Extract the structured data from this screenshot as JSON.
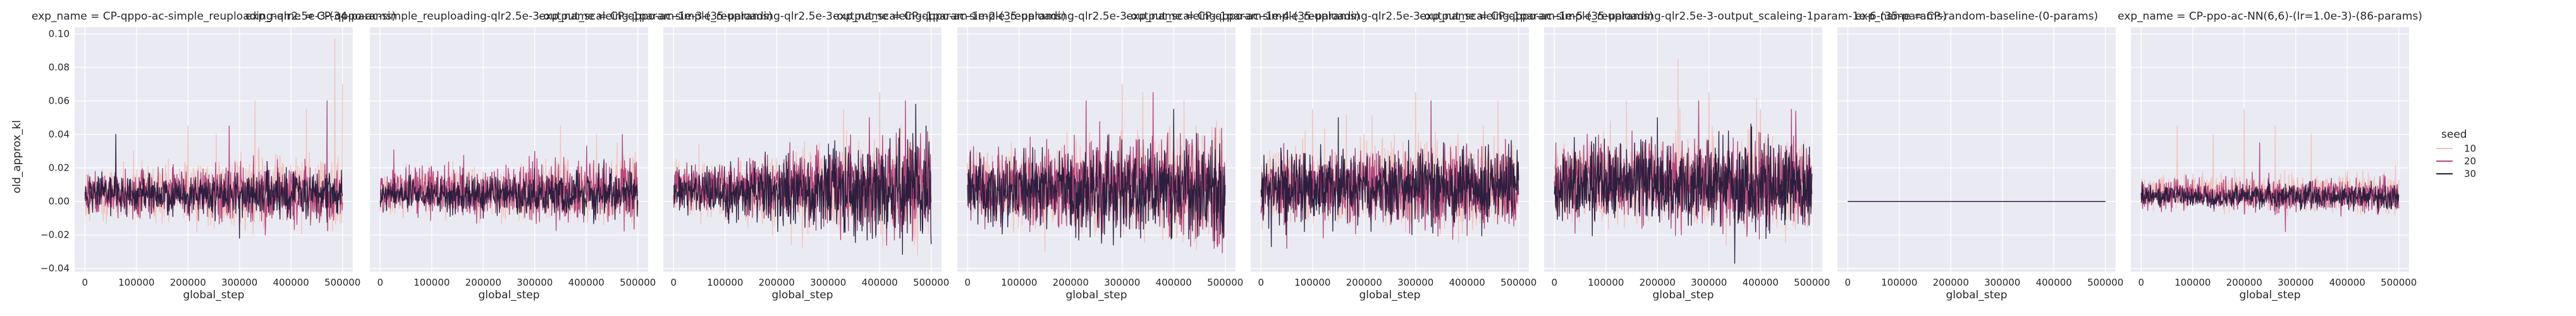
{
  "chart_data": {
    "type": "line",
    "xlabel": "global_step",
    "ylabel": "old_approx_kl",
    "xlim": [
      -20000,
      520000
    ],
    "ylim": [
      -0.042,
      0.104
    ],
    "xticks": [
      0,
      100000,
      200000,
      300000,
      400000,
      500000
    ],
    "xtick_labels": [
      "0",
      "100000",
      "200000",
      "300000",
      "400000",
      "500000"
    ],
    "yticks": [
      -0.04,
      -0.02,
      0.0,
      0.02,
      0.04,
      0.06,
      0.08,
      0.1
    ],
    "ytick_labels": [
      "−0.04",
      "−0.02",
      "0.00",
      "0.02",
      "0.04",
      "0.06",
      "0.08",
      "0.10"
    ],
    "grid": true,
    "legend": {
      "title": "seed",
      "placement": "right",
      "entries": [
        {
          "label": "10",
          "color": "#f1c3bd"
        },
        {
          "label": "20",
          "color": "#b3477a"
        },
        {
          "label": "30",
          "color": "#2d1e3e"
        }
      ]
    },
    "panels": [
      {
        "title": "exp_name = CP-qppo-ac-simple_reuploading-qlr2.5e-3-(34-params)",
        "series": [
          {
            "name": "10",
            "center": 0.005,
            "spread": 0.007,
            "spread_end": 0.012,
            "outliers": [
              [
                200000,
                0.045
              ],
              [
                255000,
                0.04
              ],
              [
                330000,
                0.06
              ],
              [
                430000,
                0.055
              ],
              [
                485000,
                0.097
              ],
              [
                500000,
                0.07
              ]
            ]
          },
          {
            "name": "20",
            "center": 0.005,
            "spread": 0.006,
            "spread_end": 0.009,
            "outliers": [
              [
                280000,
                0.045
              ],
              [
                470000,
                0.06
              ],
              [
                350000,
                -0.02
              ]
            ]
          },
          {
            "name": "30",
            "center": 0.004,
            "spread": 0.005,
            "spread_end": 0.007,
            "outliers": [
              [
                60000,
                0.04
              ],
              [
                300000,
                -0.022
              ]
            ]
          }
        ]
      },
      {
        "title": "exp_name = CP-qppo-ac-simple_reuploading-qlr2.5e-3-output_scaleing-1param-1e-3-(35-params)",
        "series": [
          {
            "name": "10",
            "center": 0.005,
            "spread": 0.006,
            "spread_end": 0.01,
            "outliers": [
              [
                350000,
                0.045
              ],
              [
                420000,
                0.04
              ],
              [
                460000,
                0.035
              ]
            ]
          },
          {
            "name": "20",
            "center": 0.006,
            "spread": 0.006,
            "spread_end": 0.01,
            "outliers": [
              [
                470000,
                0.04
              ],
              [
                300000,
                0.03
              ]
            ]
          },
          {
            "name": "30",
            "center": 0.004,
            "spread": 0.004,
            "spread_end": 0.007,
            "outliers": [
              [
                200000,
                -0.01
              ]
            ]
          }
        ]
      },
      {
        "title": "exp_name = CP-qppo-ac-simple_reuploading-qlr2.5e-3-output_scaleing-1param-1e-2-(35-params)",
        "series": [
          {
            "name": "10",
            "center": 0.007,
            "spread": 0.007,
            "spread_end": 0.015,
            "outliers": [
              [
                400000,
                0.065
              ],
              [
                330000,
                0.055
              ],
              [
                250000,
                -0.028
              ]
            ]
          },
          {
            "name": "20",
            "center": 0.008,
            "spread": 0.006,
            "spread_end": 0.016,
            "outliers": [
              [
                450000,
                0.06
              ],
              [
                380000,
                0.05
              ]
            ]
          },
          {
            "name": "30",
            "center": 0.006,
            "spread": 0.005,
            "spread_end": 0.016,
            "outliers": [
              [
                470000,
                0.058
              ],
              [
                490000,
                0.045
              ]
            ]
          }
        ]
      },
      {
        "title": "exp_name = CP-qppo-ac-simple_reuploading-qlr2.5e-3-output_scaleing-1param-1e-4-(35-params)",
        "series": [
          {
            "name": "10",
            "center": 0.008,
            "spread": 0.01,
            "spread_end": 0.016,
            "outliers": [
              [
                340000,
                0.065
              ],
              [
                300000,
                0.07
              ],
              [
                420000,
                0.06
              ],
              [
                150000,
                -0.03
              ]
            ]
          },
          {
            "name": "20",
            "center": 0.008,
            "spread": 0.01,
            "spread_end": 0.015,
            "outliers": [
              [
                360000,
                0.065
              ],
              [
                230000,
                0.06
              ]
            ]
          },
          {
            "name": "30",
            "center": 0.007,
            "spread": 0.01,
            "spread_end": 0.014,
            "outliers": [
              [
                400000,
                0.055
              ],
              [
                260000,
                -0.025
              ]
            ]
          }
        ]
      },
      {
        "title": "exp_name = CP-qppo-ac-simple_reuploading-qlr2.5e-3-output_scaleing-1param-1e-5-(35-params)",
        "series": [
          {
            "name": "10",
            "center": 0.009,
            "spread": 0.011,
            "spread_end": 0.014,
            "outliers": [
              [
                100000,
                0.055
              ],
              [
                300000,
                0.065
              ],
              [
                460000,
                0.06
              ]
            ]
          },
          {
            "name": "20",
            "center": 0.008,
            "spread": 0.01,
            "spread_end": 0.012,
            "outliers": [
              [
                330000,
                0.06
              ],
              [
                50000,
                -0.028
              ]
            ]
          },
          {
            "name": "30",
            "center": 0.008,
            "spread": 0.01,
            "spread_end": 0.011,
            "outliers": [
              [
                150000,
                0.05
              ],
              [
                20000,
                -0.027
              ]
            ]
          }
        ]
      },
      {
        "title": "exp_name = CP-qppo-ac-simple_reuploading-qlr2.5e-3-output_scaleing-1param-1e-6-(35-params)",
        "series": [
          {
            "name": "10",
            "center": 0.012,
            "spread": 0.011,
            "spread_end": 0.014,
            "outliers": [
              [
                140000,
                0.06
              ],
              [
                240000,
                0.085
              ],
              [
                300000,
                0.065
              ],
              [
                400000,
                0.055
              ]
            ]
          },
          {
            "name": "20",
            "center": 0.011,
            "spread": 0.011,
            "spread_end": 0.013,
            "outliers": [
              [
                280000,
                0.06
              ],
              [
                460000,
                0.055
              ]
            ]
          },
          {
            "name": "30",
            "center": 0.01,
            "spread": 0.011,
            "spread_end": 0.013,
            "outliers": [
              [
                350000,
                -0.037
              ],
              [
                200000,
                0.05
              ]
            ]
          }
        ]
      },
      {
        "title": "exp_name = CP-random-baseline-(0-params)",
        "series": [
          {
            "name": "10",
            "center": 0.0,
            "spread": 0.0,
            "spread_end": 0.0,
            "outliers": []
          },
          {
            "name": "20",
            "center": 0.0,
            "spread": 0.0,
            "spread_end": 0.0,
            "outliers": []
          },
          {
            "name": "30",
            "center": 0.0,
            "spread": 0.0,
            "spread_end": 0.0,
            "outliers": []
          }
        ]
      },
      {
        "title": "exp_name = CP-ppo-ac-NN(6,6)-(lr=1.0e-3)-(86-params)",
        "series": [
          {
            "name": "10",
            "center": 0.005,
            "spread": 0.005,
            "spread_end": 0.006,
            "outliers": [
              [
                70000,
                0.045
              ],
              [
                140000,
                0.04
              ],
              [
                200000,
                0.055
              ],
              [
                260000,
                0.045
              ],
              [
                330000,
                0.04
              ]
            ]
          },
          {
            "name": "20",
            "center": 0.004,
            "spread": 0.004,
            "spread_end": 0.005,
            "outliers": [
              [
                230000,
                0.035
              ],
              [
                280000,
                -0.018
              ]
            ]
          },
          {
            "name": "30",
            "center": 0.003,
            "spread": 0.003,
            "spread_end": 0.004,
            "outliers": []
          }
        ]
      }
    ]
  }
}
